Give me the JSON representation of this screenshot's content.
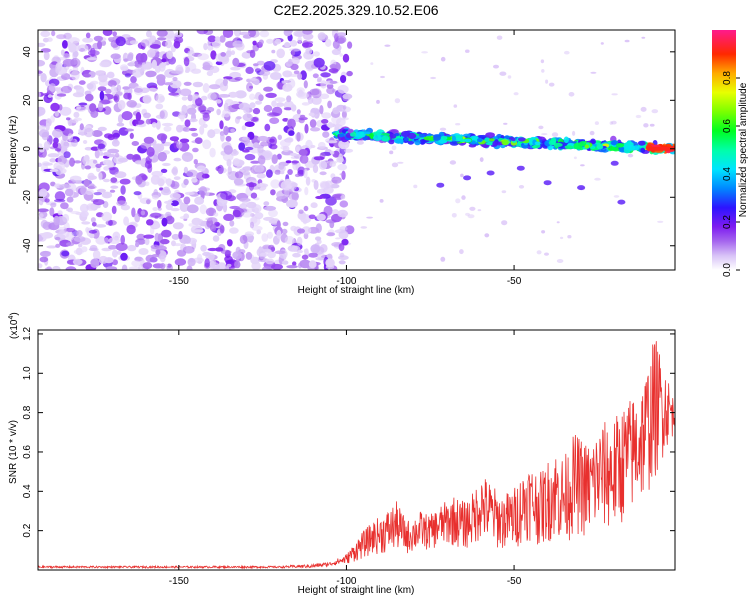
{
  "title": "C2E2.2025.329.10.52.E06",
  "chart_data": [
    {
      "type": "heatmap",
      "xlabel": "Height of straight line (km)",
      "ylabel": "Frequency (Hz)",
      "xlim": [
        -192,
        -2
      ],
      "ylim": [
        -50,
        49
      ],
      "xticks": [
        -150,
        -100,
        -50
      ],
      "xtick_labels": [
        "-150",
        "-100",
        "-50"
      ],
      "yticks": [
        -40,
        -20,
        0,
        20,
        40
      ],
      "ytick_labels": [
        "-40",
        "-20",
        "0",
        "20",
        "40"
      ],
      "colorbar": {
        "label": "Normalized spectral amplitude",
        "range": [
          0,
          1
        ],
        "ticks": [
          0.0,
          0.2,
          0.4,
          0.6,
          0.8
        ],
        "tick_labels": [
          "0.0",
          "0.2",
          "0.4",
          "0.6",
          "0.8"
        ]
      },
      "regions": [
        {
          "name": "scattered noise",
          "x_range": [
            -192,
            -103
          ],
          "freq_range": [
            -50,
            49
          ],
          "amplitude": "0.05-0.2"
        },
        {
          "name": "signal band",
          "x_range": [
            -103,
            -2
          ],
          "freq_center_start": 6,
          "freq_center_end": 0,
          "freq_half_width": 3,
          "amplitude": "0.2-1.0"
        }
      ]
    },
    {
      "type": "line",
      "xlabel": "Height of straight line (km)",
      "ylabel": "SNR (10 * v/v)",
      "yscale_label": "(x10",
      "yscale_exp": "4",
      "yscale_suffix": ")",
      "xlim": [
        -192,
        -2
      ],
      "ylim": [
        0,
        1.22
      ],
      "xticks": [
        -150,
        -100,
        -50
      ],
      "xtick_labels": [
        "-150",
        "-100",
        "-50"
      ],
      "yticks": [
        0.2,
        0.4,
        0.6,
        0.8,
        1.0,
        1.2
      ],
      "ytick_labels": [
        "0.2",
        "0.4",
        "0.6",
        "0.8",
        "1.0",
        "1.2"
      ],
      "series": [
        {
          "name": "SNR",
          "color": "#e8302e",
          "x": [
            -192,
            -180,
            -170,
            -160,
            -150,
            -140,
            -130,
            -120,
            -110,
            -105,
            -100,
            -96,
            -92,
            -88,
            -85,
            -82,
            -78,
            -75,
            -72,
            -68,
            -65,
            -62,
            -60,
            -57,
            -54,
            -50,
            -46,
            -42,
            -38,
            -35,
            -32,
            -28,
            -24,
            -20,
            -17,
            -14,
            -11,
            -8,
            -5,
            -2
          ],
          "y": [
            0.02,
            0.02,
            0.02,
            0.02,
            0.02,
            0.02,
            0.02,
            0.02,
            0.03,
            0.04,
            0.08,
            0.18,
            0.25,
            0.3,
            0.35,
            0.25,
            0.3,
            0.28,
            0.33,
            0.38,
            0.35,
            0.4,
            0.5,
            0.45,
            0.38,
            0.42,
            0.55,
            0.5,
            0.62,
            0.58,
            0.7,
            0.65,
            0.75,
            0.78,
            0.85,
            0.9,
            1.0,
            1.2,
            1.05,
            0.85
          ],
          "y_min": [
            0.01,
            0.01,
            0.01,
            0.01,
            0.01,
            0.01,
            0.01,
            0.01,
            0.01,
            0.02,
            0.03,
            0.05,
            0.08,
            0.08,
            0.1,
            0.08,
            0.1,
            0.1,
            0.12,
            0.12,
            0.1,
            0.12,
            0.15,
            0.12,
            0.1,
            0.1,
            0.15,
            0.12,
            0.15,
            0.12,
            0.18,
            0.15,
            0.2,
            0.18,
            0.25,
            0.3,
            0.35,
            0.45,
            0.6,
            0.7
          ]
        }
      ]
    }
  ]
}
